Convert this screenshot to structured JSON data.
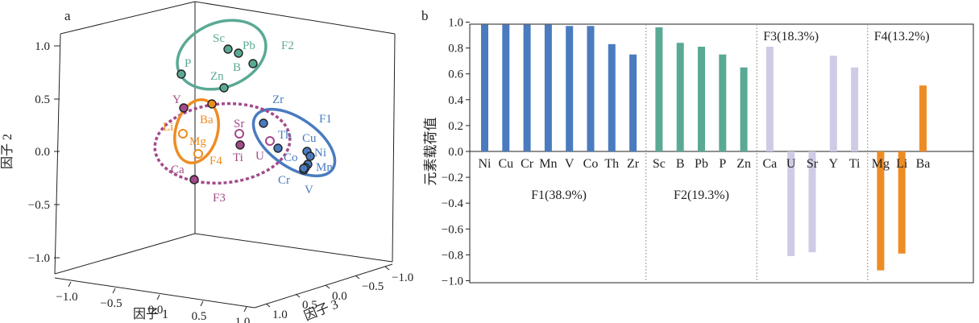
{
  "colors": {
    "F1": "#4a7bbf",
    "F2": "#5aa995",
    "F3": "#a24a8a",
    "F3bar": "#cfcbe6",
    "F4": "#ee8c24",
    "axis": "#222222",
    "dotted": "#999999"
  },
  "chart_data": [
    {
      "type": "scatter",
      "panel_label": "a",
      "xlabel": "因子 1",
      "ylabel": "因子 2",
      "zlabel": "因子 3",
      "x_ticks": [
        "−1.0",
        "−0.5",
        "0.0",
        "0.5",
        "1.0"
      ],
      "y_ticks": [
        "1.0",
        "0.5",
        "0.0",
        "−0.5",
        "−1.0"
      ],
      "z_ticks": [
        "1.0",
        "0.5",
        "0.0",
        "−0.5",
        "−1.0"
      ],
      "ylim": [
        -1.0,
        1.0
      ],
      "groups": [
        {
          "name": "F1",
          "color_key": "F1",
          "points": [
            {
              "label": "Zr",
              "y": 0.27
            },
            {
              "label": "Cu",
              "y": 0.01
            },
            {
              "label": "Ni",
              "y": -0.03
            },
            {
              "label": "Mn",
              "y": -0.1
            },
            {
              "label": "Co",
              "y": -0.12
            },
            {
              "label": "Cr",
              "y": -0.17
            },
            {
              "label": "V",
              "y": -0.17
            },
            {
              "label": "Th",
              "y": 0.04
            }
          ]
        },
        {
          "name": "F2",
          "color_key": "F2",
          "points": [
            {
              "label": "Sc",
              "y": 0.98
            },
            {
              "label": "Pb",
              "y": 0.93
            },
            {
              "label": "B",
              "y": 0.84
            },
            {
              "label": "P",
              "y": 0.74
            },
            {
              "label": "Zn",
              "y": 0.6
            }
          ]
        },
        {
          "name": "F3",
          "color_key": "F3",
          "points": [
            {
              "label": "Y",
              "y": 0.42
            },
            {
              "label": "Sr",
              "y": 0.17
            },
            {
              "label": "Ti",
              "y": 0.07
            },
            {
              "label": "U",
              "y": 0.1
            },
            {
              "label": "Ca",
              "y": -0.27
            }
          ]
        },
        {
          "name": "F4",
          "color_key": "F4",
          "points": [
            {
              "label": "Ba",
              "y": 0.45
            },
            {
              "label": "Li",
              "y": 0.16
            },
            {
              "label": "Mg",
              "y": -0.03
            }
          ]
        }
      ]
    },
    {
      "type": "bar",
      "panel_label": "b",
      "ylabel": "元素载荷值",
      "ylim": [
        -1.0,
        1.0
      ],
      "y_ticks": [
        "1.0",
        "0.8",
        "0.6",
        "0.4",
        "0.2",
        "0.0",
        "−0.2",
        "−0.4",
        "−0.6",
        "−0.8",
        "−1.0"
      ],
      "y_tick_values": [
        1.0,
        0.8,
        0.6,
        0.4,
        0.2,
        0.0,
        -0.2,
        -0.4,
        -0.6,
        -0.8,
        -1.0
      ],
      "groups": [
        {
          "label": "F1(38.9%)",
          "color_key": "F1",
          "categories": [
            "Ni",
            "Cu",
            "Cr",
            "Mn",
            "V",
            "Co",
            "Th",
            "Zr"
          ],
          "values": [
            0.98,
            0.98,
            0.98,
            0.98,
            0.97,
            0.97,
            0.83,
            0.75
          ]
        },
        {
          "label": "F2(19.3%)",
          "color_key": "F2",
          "categories": [
            "Sc",
            "B",
            "Pb",
            "P",
            "Zn"
          ],
          "values": [
            0.96,
            0.84,
            0.81,
            0.75,
            0.65
          ]
        },
        {
          "label": "F3(18.3%)",
          "color_key": "F3bar",
          "categories": [
            "Ca",
            "U",
            "Sr",
            "Y",
            "Ti"
          ],
          "values": [
            0.81,
            -0.81,
            -0.78,
            0.74,
            0.65
          ]
        },
        {
          "label": "F4(13.2%)",
          "color_key": "F4",
          "categories": [
            "Mg",
            "Li",
            "Ba"
          ],
          "values": [
            -0.92,
            -0.79,
            0.51
          ]
        }
      ]
    }
  ]
}
